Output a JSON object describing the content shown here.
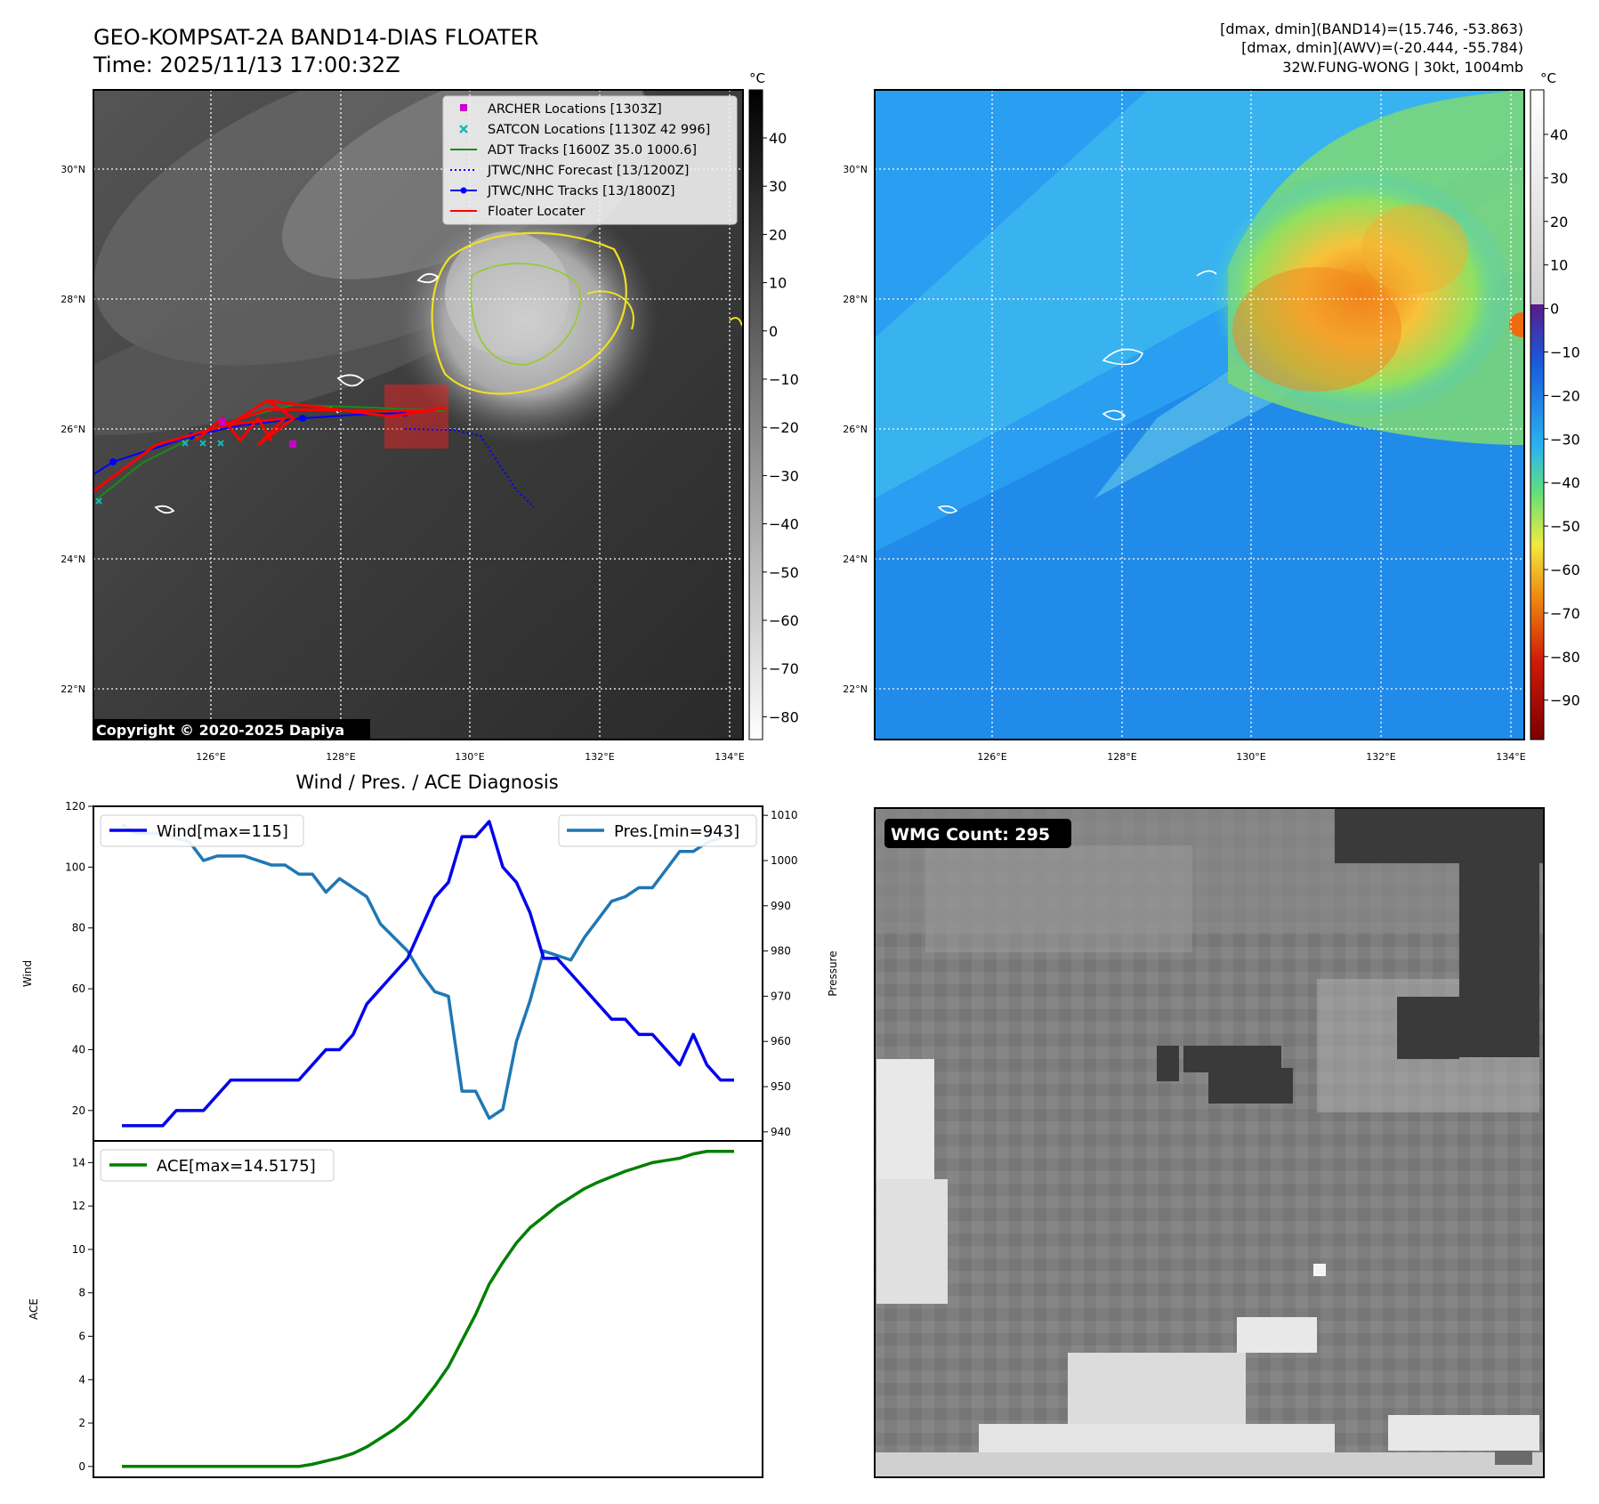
{
  "header": {
    "title_line1": "GEO-KOMPSAT-2A BAND14-DIAS FLOATER",
    "title_line2": "Time: 2025/11/13 17:00:32Z",
    "info_line1": "[dmax, dmin](BAND14)=(15.746, -53.863)",
    "info_line2": "[dmax, dmin](AWV)=(-20.444, -55.784)",
    "info_line3": "32W.FUNG-WONG | 30kt, 1004mb"
  },
  "maps": {
    "lat_labels": [
      "30°N",
      "28°N",
      "26°N",
      "24°N",
      "22°N"
    ],
    "lon_labels": [
      "126°E",
      "128°E",
      "130°E",
      "132°E",
      "134°E"
    ],
    "copyright": "Copyright © 2020-2025 Dapiya",
    "legend": [
      {
        "label": "ARCHER Locations [1303Z]",
        "color": "#cc00cc"
      },
      {
        "label": "SATCON Locations [1130Z 42 996]",
        "color": "#19b8b8"
      },
      {
        "label": "ADT Tracks [1600Z 35.0 1000.6]",
        "color": "#1a8a1a"
      },
      {
        "label": "JTWC/NHC Forecast [13/1200Z]",
        "color": "#0000ff"
      },
      {
        "label": "JTWC/NHC Tracks [13/1800Z]",
        "color": "#0000ff"
      },
      {
        "label": "Floater Locater",
        "color": "#ff0000"
      }
    ],
    "ir_colorbar": {
      "unit": "°C",
      "ticks": [
        "40",
        "30",
        "20",
        "10",
        "0",
        "−10",
        "−20",
        "−30",
        "−40",
        "−50",
        "−60",
        "−70",
        "−80"
      ]
    },
    "awv_colorbar": {
      "unit": "°C",
      "ticks": [
        "40",
        "30",
        "20",
        "10",
        "0",
        "−10",
        "−20",
        "−30",
        "−40",
        "−50",
        "−60",
        "−70",
        "−80",
        "−90"
      ]
    }
  },
  "diagnosis": {
    "title": "Wind / Pres. / ACE Diagnosis",
    "wind_label": "Wind",
    "pressure_label": "Pressure",
    "ace_label": "ACE",
    "wind_legend": "Wind[max=115]",
    "pres_legend": "Pres.[min=943]",
    "ace_legend": "ACE[max=14.5175]",
    "wind_color": "#0000ee",
    "pres_color": "#1f77b4",
    "ace_color": "#007f00"
  },
  "chart_data": [
    {
      "type": "line",
      "title": "Wind / Pres. / ACE Diagnosis",
      "xlabel": "",
      "ylabel": "Wind",
      "ylim": [
        10,
        120
      ],
      "yticks": [
        20,
        40,
        60,
        80,
        100,
        120
      ],
      "x": [
        0,
        1,
        2,
        3,
        4,
        5,
        6,
        7,
        8,
        9,
        10,
        11,
        12,
        13,
        14,
        15,
        16,
        17,
        18,
        19,
        20,
        21,
        22,
        23,
        24,
        25,
        26,
        27,
        28,
        29,
        30,
        31,
        32,
        33,
        34,
        35,
        36,
        37,
        38,
        39,
        40,
        41,
        42,
        43,
        44,
        45
      ],
      "series": [
        {
          "name": "Wind[max=115]",
          "axis": "left",
          "values": [
            15,
            15,
            15,
            15,
            20,
            20,
            20,
            25,
            30,
            30,
            30,
            30,
            30,
            30,
            35,
            40,
            40,
            45,
            55,
            60,
            65,
            70,
            80,
            90,
            95,
            110,
            110,
            115,
            100,
            95,
            85,
            70,
            70,
            65,
            60,
            55,
            50,
            50,
            45,
            45,
            40,
            35,
            45,
            35,
            30,
            30
          ]
        },
        {
          "name": "Pres.[min=943]",
          "axis": "right",
          "ylim": [
            938,
            1012
          ],
          "yticks": [
            940,
            950,
            960,
            970,
            980,
            990,
            1000,
            1010
          ],
          "values": [
            1008,
            1006,
            1006,
            1006,
            1005,
            1004,
            1000,
            1001,
            1001,
            1001,
            1000,
            999,
            999,
            997,
            997,
            993,
            996,
            994,
            992,
            986,
            983,
            980,
            975,
            971,
            970,
            949,
            949,
            943,
            945,
            960,
            969,
            980,
            979,
            978,
            983,
            987,
            991,
            992,
            994,
            994,
            998,
            1002,
            1002,
            1004,
            1005,
            1006
          ]
        }
      ]
    },
    {
      "type": "line",
      "xlabel": "",
      "ylabel": "ACE",
      "ylim": [
        -0.5,
        15
      ],
      "yticks": [
        0,
        2,
        4,
        6,
        8,
        10,
        12,
        14
      ],
      "x": [
        0,
        1,
        2,
        3,
        4,
        5,
        6,
        7,
        8,
        9,
        10,
        11,
        12,
        13,
        14,
        15,
        16,
        17,
        18,
        19,
        20,
        21,
        22,
        23,
        24,
        25,
        26,
        27,
        28,
        29,
        30,
        31,
        32,
        33,
        34,
        35,
        36,
        37,
        38,
        39,
        40,
        41,
        42,
        43,
        44,
        45
      ],
      "series": [
        {
          "name": "ACE[max=14.5175]",
          "values": [
            0,
            0,
            0,
            0,
            0,
            0,
            0,
            0,
            0,
            0,
            0,
            0,
            0,
            0,
            0.1,
            0.25,
            0.4,
            0.6,
            0.9,
            1.3,
            1.7,
            2.2,
            2.9,
            3.7,
            4.6,
            5.8,
            7.0,
            8.4,
            9.4,
            10.3,
            11.0,
            11.5,
            12.0,
            12.4,
            12.8,
            13.1,
            13.35,
            13.6,
            13.8,
            14.0,
            14.1,
            14.2,
            14.4,
            14.5175,
            14.5175,
            14.5175
          ]
        }
      ]
    }
  ],
  "wmg": {
    "count_label": "WMG Count: 295"
  }
}
